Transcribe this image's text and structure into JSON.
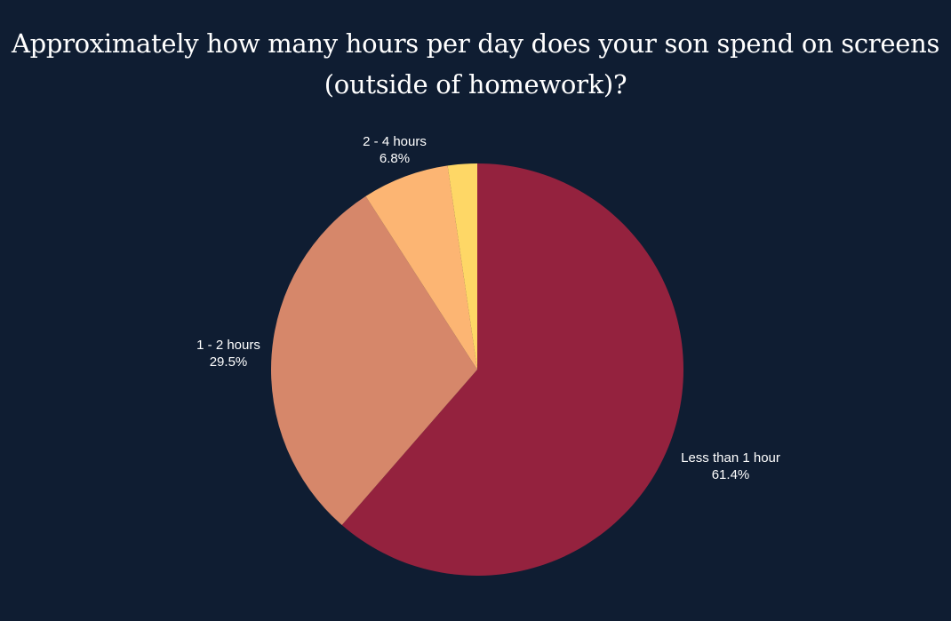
{
  "chart_data": {
    "type": "pie",
    "title_lines": [
      "Approximately how many hours per day does your son spend on screens",
      "(outside of homework)?"
    ],
    "slices": [
      {
        "label": "Less than 1 hour",
        "value": 61.4,
        "value_label": "61.4%",
        "color": "#94223e",
        "show_label": true
      },
      {
        "label": "1 - 2 hours",
        "value": 29.5,
        "value_label": "29.5%",
        "color": "#d6876a",
        "show_label": true
      },
      {
        "label": "2 - 4 hours",
        "value": 6.8,
        "value_label": "6.8%",
        "color": "#fcb573",
        "show_label": true
      },
      {
        "label": "",
        "value": 2.3,
        "value_label": "",
        "color": "#fed766",
        "show_label": false
      }
    ],
    "start_angle": "12 o'clock",
    "direction": "clockwise",
    "legend": "none"
  }
}
